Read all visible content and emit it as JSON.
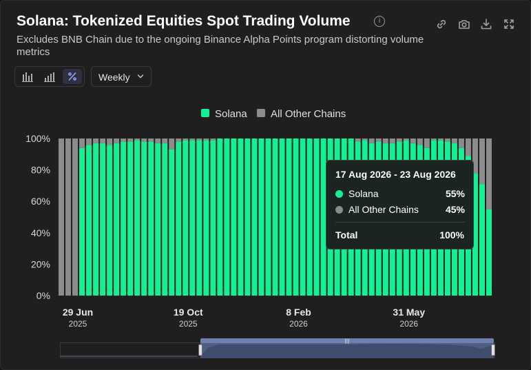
{
  "header": {
    "title": "Solana: Tokenized Equities Spot Trading Volume",
    "subtitle": "Excludes BNB Chain due to the ongoing Binance Alpha Points program distorting volume metrics",
    "info_icon": "info-icon",
    "actions": [
      "link-icon",
      "camera-icon",
      "download-icon",
      "fullscreen-icon"
    ]
  },
  "controls": {
    "chart_type_buttons": [
      "bar-chart-icon",
      "stacked-bar-icon",
      "percent-icon"
    ],
    "active_button": "percent-icon",
    "interval": "Weekly"
  },
  "legend": {
    "solana": "Solana",
    "other": "All Other Chains"
  },
  "colors": {
    "solana": "#14f195",
    "other": "#8c8c8c",
    "background": "#1f1f1f",
    "navigator": "#5a6a96"
  },
  "tooltip": {
    "date_range": "17 Aug 2026 - 23 Aug 2026",
    "solana_label": "Solana",
    "solana_value": "55%",
    "other_label": "All Other Chains",
    "other_value": "45%",
    "total_label": "Total",
    "total_value": "100%"
  },
  "chart_data": {
    "type": "bar",
    "stacked": true,
    "normalized": true,
    "ylim": [
      0,
      100
    ],
    "y_ticks": [
      "0%",
      "20%",
      "40%",
      "60%",
      "80%",
      "100%"
    ],
    "x_ticks": [
      {
        "label": "29 Jun",
        "year": "2025",
        "index": 0
      },
      {
        "label": "19 Oct",
        "year": "2025",
        "index": 16
      },
      {
        "label": "8 Feb",
        "year": "2026",
        "index": 32
      },
      {
        "label": "31 May",
        "year": "2026",
        "index": 48
      }
    ],
    "series": [
      {
        "name": "Solana",
        "values": [
          0,
          0,
          0,
          94,
          96,
          97,
          97,
          96,
          97,
          98,
          98,
          99,
          98,
          98,
          97,
          97,
          93,
          98,
          99,
          99,
          99,
          99,
          99,
          100,
          100,
          100,
          100,
          100,
          100,
          100,
          100,
          100,
          100,
          100,
          100,
          100,
          100,
          100,
          100,
          100,
          100,
          100,
          100,
          98,
          99,
          97,
          98,
          97,
          97,
          98,
          99,
          97,
          96,
          94,
          99,
          99,
          98,
          97,
          94,
          89,
          78,
          71,
          55
        ]
      },
      {
        "name": "All Other Chains",
        "values": [
          100,
          100,
          100,
          6,
          4,
          3,
          3,
          4,
          3,
          2,
          2,
          1,
          2,
          2,
          3,
          3,
          7,
          2,
          1,
          1,
          1,
          1,
          1,
          0,
          0,
          0,
          0,
          0,
          0,
          0,
          0,
          0,
          0,
          0,
          0,
          0,
          0,
          0,
          0,
          0,
          0,
          0,
          0,
          2,
          1,
          3,
          2,
          3,
          3,
          2,
          1,
          3,
          4,
          6,
          1,
          1,
          2,
          3,
          6,
          11,
          22,
          29,
          45
        ]
      }
    ]
  }
}
